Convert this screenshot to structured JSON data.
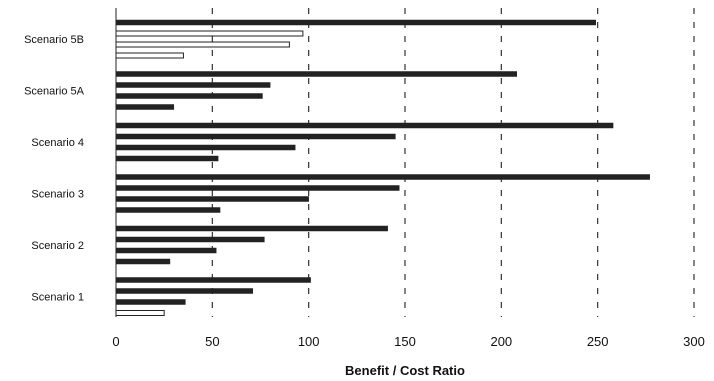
{
  "chart_data": {
    "type": "bar",
    "orientation": "horizontal",
    "categories": [
      "Scenario 1",
      "Scenario 2",
      "Scenario 3",
      "Scenario 4",
      "Scenario 5A",
      "Scenario 5B"
    ],
    "series": [
      {
        "values": [
          25,
          28,
          54,
          53,
          30,
          35
        ],
        "fill": "#222222",
        "outline_only": [
          true,
          false,
          false,
          false,
          false,
          true
        ]
      },
      {
        "values": [
          36,
          52,
          100,
          93,
          76,
          90
        ],
        "fill": "#222222",
        "outline_only": [
          false,
          false,
          false,
          false,
          false,
          true
        ]
      },
      {
        "values": [
          71,
          77,
          147,
          145,
          80,
          97
        ],
        "fill": "#222222",
        "outline_only": [
          false,
          false,
          false,
          false,
          false,
          true
        ]
      },
      {
        "values": [
          101,
          141,
          277,
          258,
          208,
          249
        ],
        "fill": "#222222",
        "outline_only": [
          false,
          false,
          false,
          false,
          false,
          false
        ]
      }
    ],
    "xlabel": "Benefit / Cost Ratio",
    "ylabel": "",
    "title": "",
    "xlim": [
      0,
      300
    ],
    "xticks": [
      "0",
      "50",
      "100",
      "150",
      "200",
      "250",
      "300"
    ],
    "grid": "vertical-dashed",
    "colors": {
      "bar": "#222222",
      "grid": "#333333",
      "background": "#ffffff"
    }
  }
}
